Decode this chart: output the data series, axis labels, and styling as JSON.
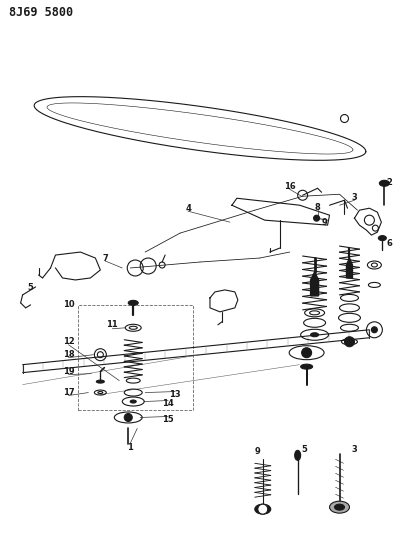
{
  "title": "8J69 5800",
  "bg_color": "#ffffff",
  "line_color": "#1a1a1a",
  "title_fontsize": 8.5,
  "fig_width": 3.99,
  "fig_height": 5.33,
  "dpi": 100
}
